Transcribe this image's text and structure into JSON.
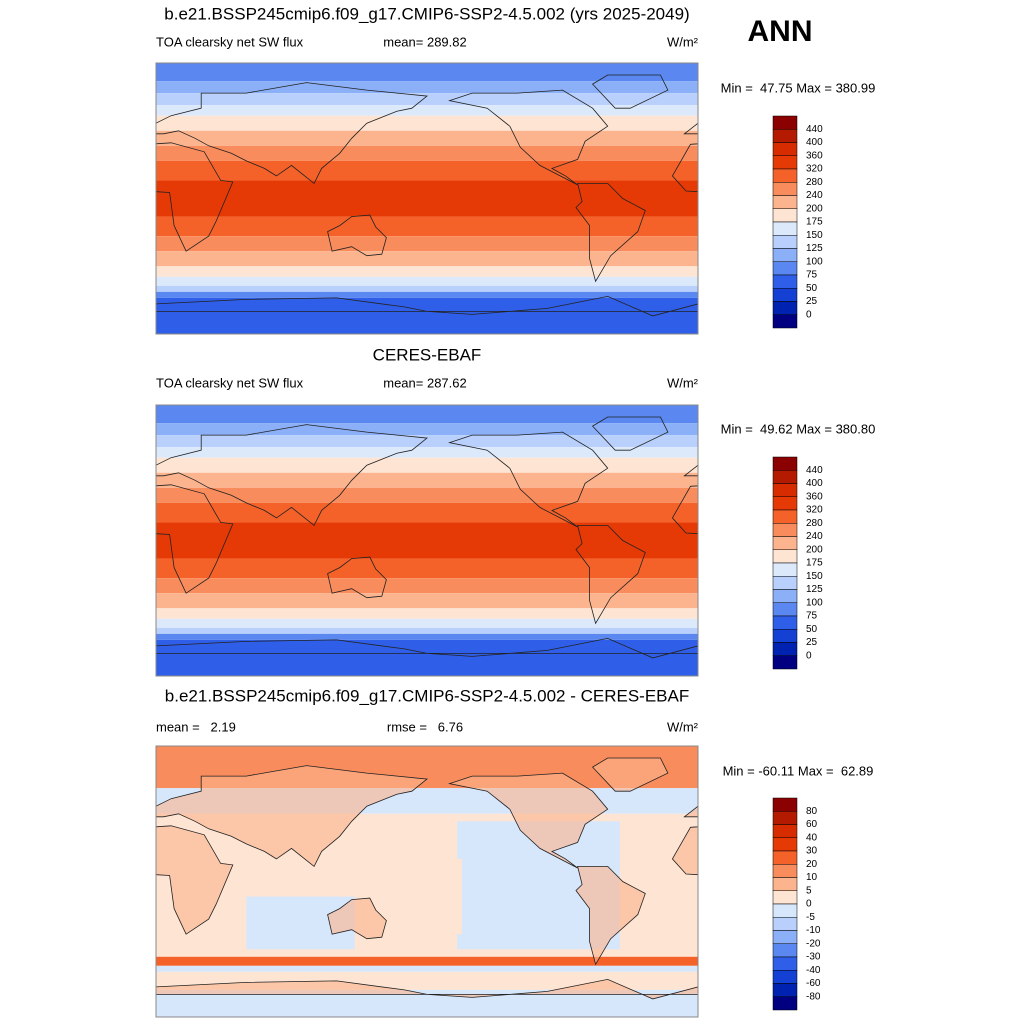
{
  "title_ann": "ANN",
  "panels": [
    {
      "title": "b.e21.BSSP245cmip6.f09_g17.CMIP6-SSP2-4.5.002 (yrs 2025-2049)",
      "left": "TOA clearsky net SW flux",
      "center": "mean= 289.82",
      "units": "W/m²",
      "minmax": "Min =  47.75 Max = 380.99",
      "colorbar": {
        "levels": [
          440,
          400,
          360,
          320,
          280,
          240,
          200,
          175,
          150,
          125,
          100,
          75,
          50,
          25,
          0
        ],
        "colors": [
          "#8b0000",
          "#b31a00",
          "#d62c00",
          "#e63a06",
          "#f4622a",
          "#f98c5c",
          "#fcb48e",
          "#fde4d3",
          "#dce9fb",
          "#b8d0fb",
          "#8cb0f7",
          "#5a88f0",
          "#2f5fe8",
          "#1440d4",
          "#0022b0",
          "#000080"
        ]
      }
    },
    {
      "title": "CERES-EBAF",
      "left": "TOA clearsky net SW flux",
      "center": "mean= 287.62",
      "units": "W/m²",
      "minmax": "Min =  49.62 Max = 380.80",
      "colorbar": {
        "levels": [
          440,
          400,
          360,
          320,
          280,
          240,
          200,
          175,
          150,
          125,
          100,
          75,
          50,
          25,
          0
        ],
        "colors": [
          "#8b0000",
          "#b31a00",
          "#d62c00",
          "#e63a06",
          "#f4622a",
          "#f98c5c",
          "#fcb48e",
          "#fde4d3",
          "#dce9fb",
          "#b8d0fb",
          "#8cb0f7",
          "#5a88f0",
          "#2f5fe8",
          "#1440d4",
          "#0022b0",
          "#000080"
        ]
      }
    },
    {
      "title": "b.e21.BSSP245cmip6.f09_g17.CMIP6-SSP2-4.5.002 - CERES-EBAF",
      "left": "mean =   2.19",
      "center": "rmse =   6.76",
      "units": "W/m²",
      "minmax": "Min = -60.11 Max =  62.89",
      "colorbar": {
        "levels": [
          80,
          60,
          40,
          30,
          20,
          10,
          5,
          0,
          -5,
          -10,
          -20,
          -30,
          -40,
          -60,
          -80
        ],
        "colors": [
          "#8b0000",
          "#b31a00",
          "#d62c00",
          "#e63a06",
          "#f4622a",
          "#f98c5c",
          "#fcb48e",
          "#fde4d3",
          "#d6e6fb",
          "#b8d0fb",
          "#8cb0f7",
          "#5a88f0",
          "#2f5fe8",
          "#1440d4",
          "#0022b0",
          "#000080"
        ]
      }
    }
  ]
}
